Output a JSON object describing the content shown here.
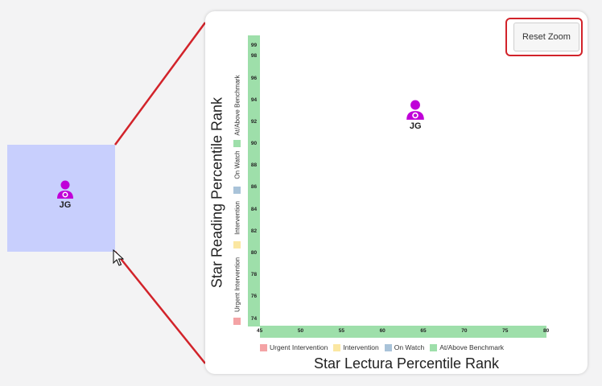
{
  "selection": {
    "marker_label": "JG"
  },
  "zoom_panel": {
    "reset_button_label": "Reset Zoom",
    "marker_label": "JG"
  },
  "chart_data": {
    "type": "scatter",
    "xlabel": "Star Lectura Percentile Rank",
    "ylabel": "Star Reading Percentile Rank",
    "x_ticks": [
      "45",
      "50",
      "55",
      "60",
      "65",
      "70",
      "75",
      "80"
    ],
    "y_ticks": [
      "74",
      "76",
      "78",
      "80",
      "82",
      "84",
      "86",
      "88",
      "90",
      "92",
      "94",
      "96",
      "98",
      "99"
    ],
    "xlim": [
      45,
      80
    ],
    "ylim": [
      73.6,
      99.5
    ],
    "points": [
      {
        "label": "JG",
        "x": 64,
        "y": 93
      }
    ],
    "legend": [
      {
        "label": "Urgent Intervention",
        "color": "#f4a3a5"
      },
      {
        "label": "Intervention",
        "color": "#fbe7a2"
      },
      {
        "label": "On Watch",
        "color": "#a9c3d9"
      },
      {
        "label": "At/Above Benchmark",
        "color": "#9edfaa"
      }
    ],
    "grid": false
  },
  "colors": {
    "marker": "#c000d8",
    "highlight": "#d2232a",
    "selection": "#c8cffd"
  }
}
